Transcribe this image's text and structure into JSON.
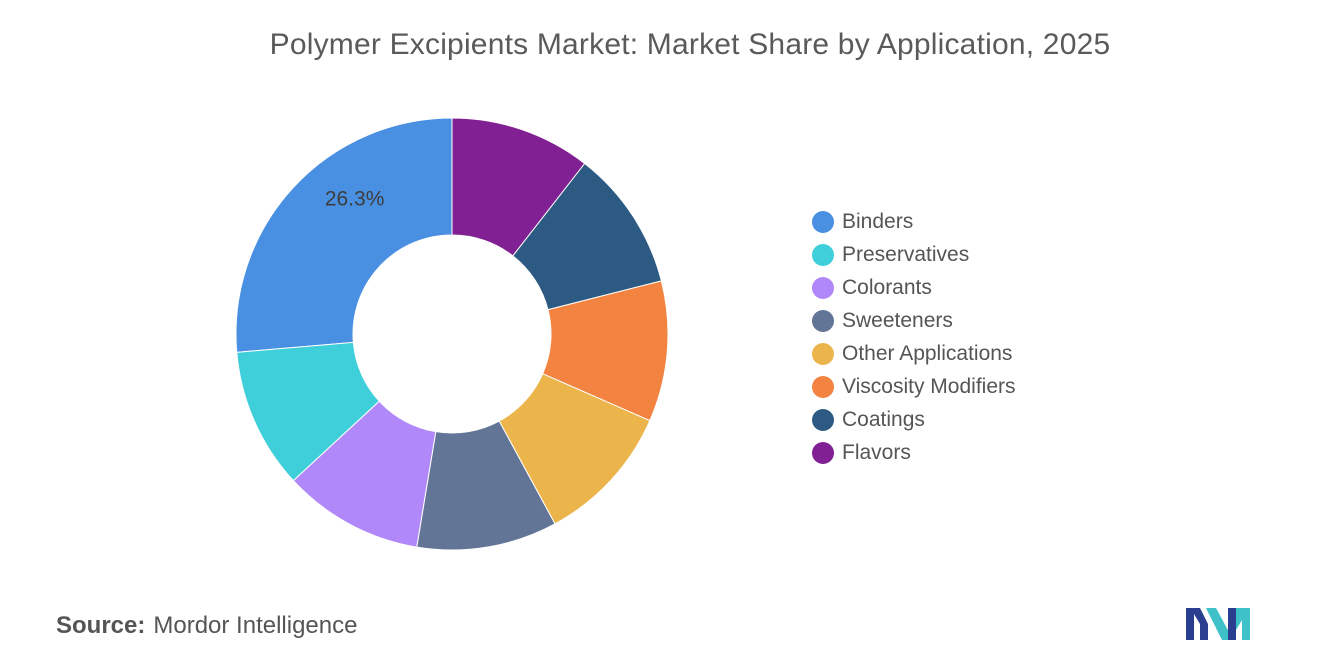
{
  "chart_data": {
    "type": "pie",
    "title": "Polymer Excipients Market: Market Share by Application, 2025",
    "donut": true,
    "categories": [
      "Binders",
      "Preservatives",
      "Colorants",
      "Sweeteners",
      "Other Applications",
      "Viscosity Modifiers",
      "Coatings",
      "Flavors"
    ],
    "values": [
      26.3,
      10.5,
      10.5,
      10.5,
      10.5,
      10.5,
      10.5,
      10.5
    ],
    "colors": [
      "#4a90e2",
      "#3ecfda",
      "#b088fa",
      "#627596",
      "#ebb54c",
      "#f28341",
      "#2d5a82",
      "#802092"
    ],
    "data_labels": [
      {
        "category": "Binders",
        "text": "26.3%"
      }
    ],
    "legend_position": "right"
  },
  "source": {
    "label": "Source:",
    "value": "Mordor Intelligence"
  },
  "logo": {
    "icon": "mordor-intelligence-logo-icon",
    "colors": [
      "#2a3f8f",
      "#3fc1c9"
    ]
  }
}
